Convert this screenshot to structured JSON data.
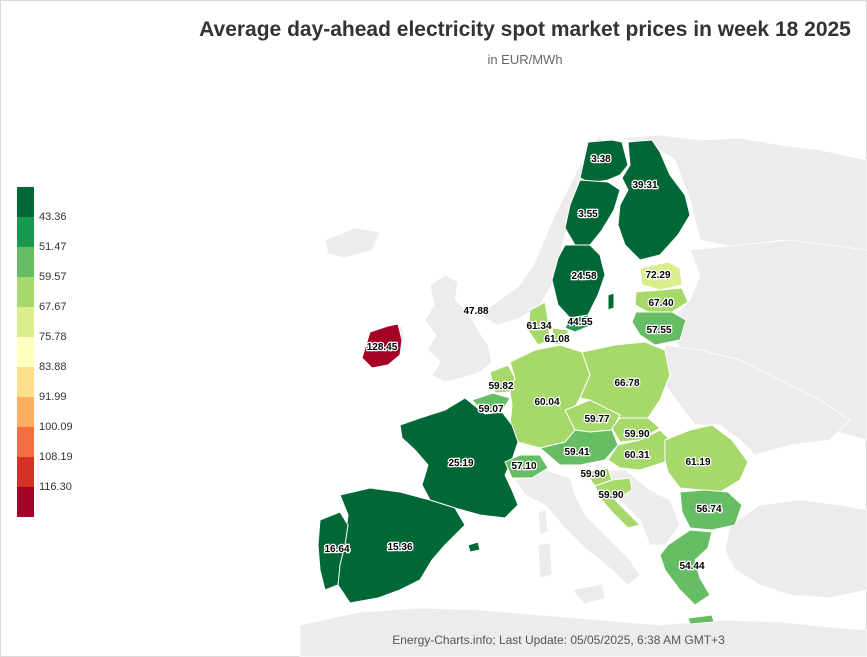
{
  "title": "Average day-ahead electricity spot market prices in week 18 2025",
  "subtitle": "in EUR/MWh",
  "credits": "Energy-Charts.info; Last Update: 05/05/2025, 6:38 AM GMT+3",
  "legend": {
    "ticks": [
      "43.36",
      "51.47",
      "59.57",
      "67.67",
      "75.78",
      "83.88",
      "91.99",
      "100.09",
      "108.19",
      "116.30"
    ],
    "colors": [
      "#006837",
      "#1a9850",
      "#66bd63",
      "#a6d96a",
      "#d9ef8b",
      "#ffffbf",
      "#fee08b",
      "#fdae61",
      "#f46d43",
      "#d73027",
      "#a50026"
    ]
  },
  "chart_data": {
    "type": "map",
    "regions": [
      {
        "name": "NO4",
        "value": 3.38
      },
      {
        "name": "FI",
        "value": 39.31
      },
      {
        "name": "SE2",
        "value": 3.55
      },
      {
        "name": "SE3",
        "value": 24.58
      },
      {
        "name": "EE",
        "value": 72.29
      },
      {
        "name": "LV",
        "value": 67.4
      },
      {
        "name": "LT",
        "value": 57.55
      },
      {
        "name": "SE4",
        "value": 44.55
      },
      {
        "name": "DK1",
        "value": 61.34
      },
      {
        "name": "DK2",
        "value": 61.08
      },
      {
        "name": "NO2 (sea label)",
        "value": 47.88
      },
      {
        "name": "IE",
        "value": 128.45
      },
      {
        "name": "NL",
        "value": 59.82
      },
      {
        "name": "BE",
        "value": 59.07
      },
      {
        "name": "DE-LU",
        "value": 60.04
      },
      {
        "name": "PL",
        "value": 66.78
      },
      {
        "name": "CZ",
        "value": 59.77
      },
      {
        "name": "SK",
        "value": 59.9
      },
      {
        "name": "AT",
        "value": 59.41
      },
      {
        "name": "HU",
        "value": 60.31
      },
      {
        "name": "RO",
        "value": 61.19
      },
      {
        "name": "FR",
        "value": 25.19
      },
      {
        "name": "CH",
        "value": 57.1
      },
      {
        "name": "SI",
        "value": 59.9
      },
      {
        "name": "HR",
        "value": 59.9
      },
      {
        "name": "BG",
        "value": 56.74
      },
      {
        "name": "GR",
        "value": 54.44
      },
      {
        "name": "ES",
        "value": 15.36
      },
      {
        "name": "PT",
        "value": 16.64
      }
    ]
  }
}
